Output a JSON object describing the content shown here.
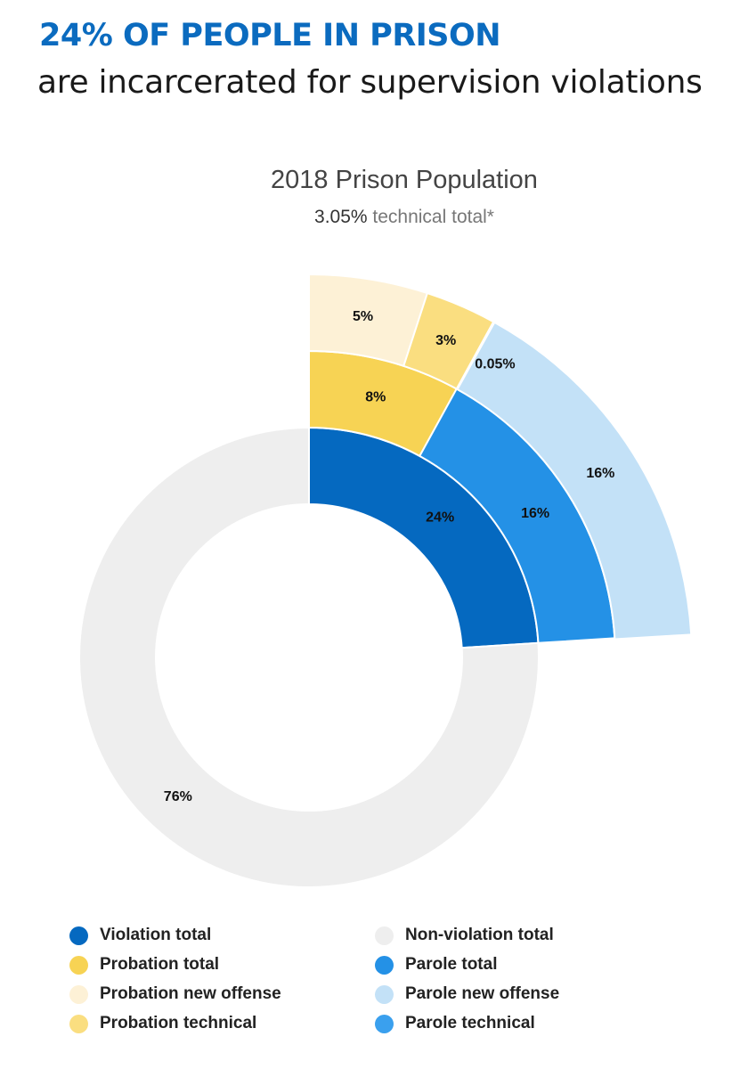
{
  "header": {
    "headline": "24% OF PEOPLE IN PRISON",
    "subheadline": "are incarcerated for supervision violations"
  },
  "chart_data": {
    "type": "pie",
    "title": "2018 Prison Population",
    "subtitle_value": "3.05%",
    "subtitle_text": " technical total*",
    "rings": [
      {
        "ring": "inner",
        "slices": [
          {
            "name": "Violation total",
            "value": 24,
            "label": "24%",
            "color": "#0569c0"
          },
          {
            "name": "Non-violation total",
            "value": 76,
            "label": "76%",
            "color": "#eeeeee"
          }
        ]
      },
      {
        "ring": "middle",
        "slices": [
          {
            "name": "Probation total",
            "value": 8,
            "label": "8%",
            "color": "#f7d354"
          },
          {
            "name": "Parole total",
            "value": 16,
            "label": "16%",
            "color": "#2491e6"
          }
        ]
      },
      {
        "ring": "outer",
        "slices": [
          {
            "name": "Probation new offense",
            "value": 5,
            "label": "5%",
            "color": "#fdf1d6"
          },
          {
            "name": "Probation technical",
            "value": 3,
            "label": "3%",
            "color": "#fade80"
          },
          {
            "name": "Parole technical",
            "value": 0.05,
            "label": "0.05%",
            "color": "#3aa0ee"
          },
          {
            "name": "Parole new offense",
            "value": 16,
            "label": "16%",
            "color": "#c3e1f7"
          }
        ]
      }
    ],
    "legend": [
      {
        "label": "Violation total",
        "color": "#0569c0"
      },
      {
        "label": "Non-violation total",
        "color": "#eeeeee"
      },
      {
        "label": "Probation total",
        "color": "#f7d354"
      },
      {
        "label": "Parole total",
        "color": "#2491e6"
      },
      {
        "label": "Probation new offense",
        "color": "#fdf1d6"
      },
      {
        "label": "Parole new offense",
        "color": "#c3e1f7"
      },
      {
        "label": "Probation technical",
        "color": "#fade80"
      },
      {
        "label": "Parole technical",
        "color": "#3aa0ee"
      }
    ]
  }
}
